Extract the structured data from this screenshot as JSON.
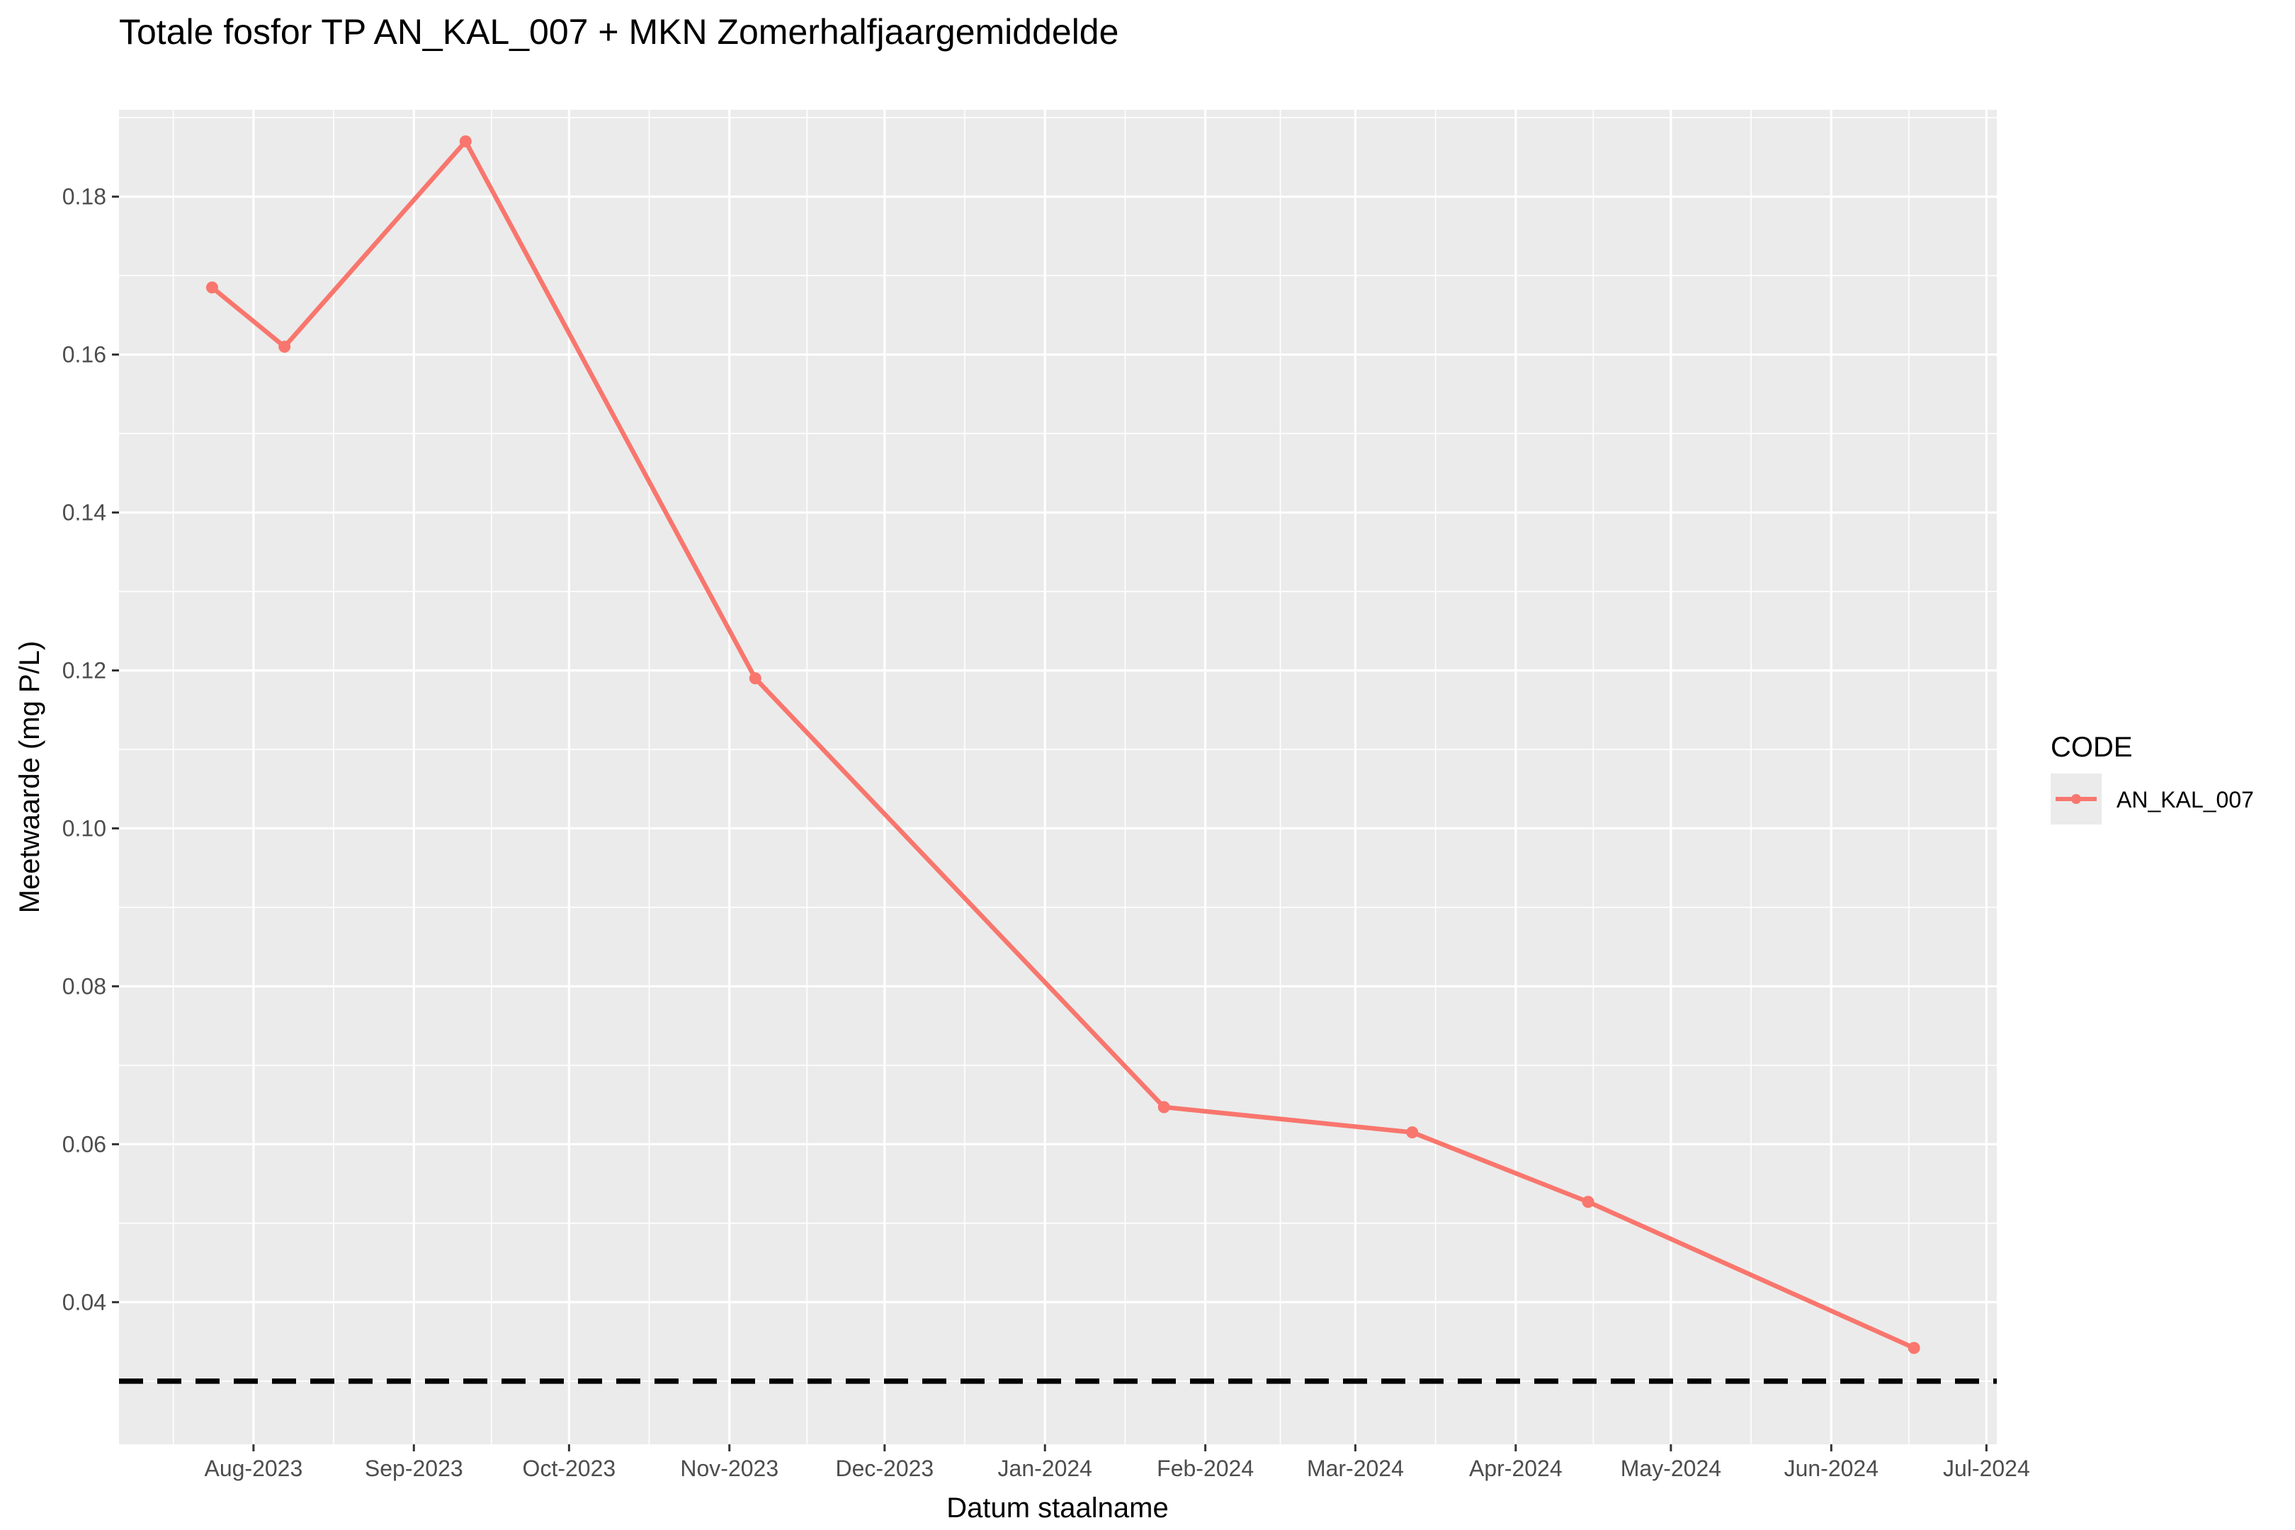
{
  "chart_data": {
    "type": "line",
    "title": "Totale fosfor TP AN_KAL_007 + MKN Zomerhalfjaargemiddelde",
    "xlabel": "Datum staalname",
    "ylabel": "Meetwaarde (mg P/L)",
    "x_ticks": [
      "Aug-2023",
      "Sep-2023",
      "Oct-2023",
      "Nov-2023",
      "Dec-2023",
      "Jan-2024",
      "Feb-2024",
      "Mar-2024",
      "Apr-2024",
      "May-2024",
      "Jun-2024",
      "Jul-2024"
    ],
    "x_tick_dates": [
      "2023-08-01",
      "2023-09-01",
      "2023-10-01",
      "2023-11-01",
      "2023-12-01",
      "2024-01-01",
      "2024-02-01",
      "2024-03-01",
      "2024-04-01",
      "2024-05-01",
      "2024-06-01",
      "2024-07-01"
    ],
    "xlim": [
      "2023-07-06",
      "2024-07-03"
    ],
    "ylim": [
      0.022,
      0.191
    ],
    "y_ticks": [
      0.04,
      0.06,
      0.08,
      0.1,
      0.12,
      0.14,
      0.16,
      0.18
    ],
    "y_tick_labels": [
      "0.04",
      "0.06",
      "0.08",
      "0.10",
      "0.12",
      "0.14",
      "0.16",
      "0.18"
    ],
    "grid": true,
    "legend": {
      "title": "CODE",
      "position": "right"
    },
    "series": [
      {
        "name": "AN_KAL_007",
        "color": "#F8766D",
        "x": [
          "2023-07-24",
          "2023-08-07",
          "2023-09-11",
          "2023-11-06",
          "2024-01-24",
          "2024-03-12",
          "2024-04-15",
          "2024-06-17"
        ],
        "y": [
          0.1685,
          0.161,
          0.187,
          0.119,
          0.0647,
          0.0615,
          0.0527,
          0.0342
        ]
      }
    ],
    "reference_line": {
      "y": 0.03,
      "color": "#000000",
      "style": "dashed"
    }
  }
}
